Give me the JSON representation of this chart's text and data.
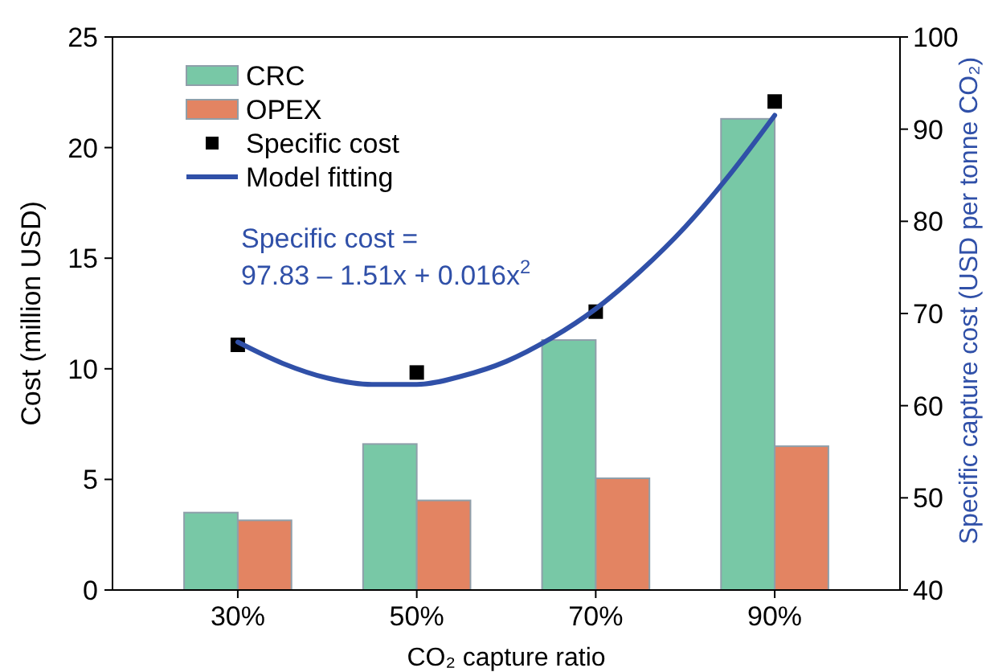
{
  "chart_data": {
    "type": "bar",
    "xlabel": "CO₂ capture ratio",
    "ylabel": "Cost (million USD)",
    "y2label": "Specific capture cost (USD per tonne CO₂)",
    "x": [
      30,
      50,
      70,
      90
    ],
    "xlim": [
      16,
      104
    ],
    "xticks": [
      {
        "value": 30,
        "label": "30%"
      },
      {
        "value": 50,
        "label": "50%"
      },
      {
        "value": 70,
        "label": "70%"
      },
      {
        "value": 90,
        "label": "90%"
      }
    ],
    "ylim": [
      0,
      25
    ],
    "yticks": [
      0,
      5,
      10,
      15,
      20,
      25
    ],
    "y2lim": [
      40,
      100
    ],
    "y2ticks": [
      40,
      50,
      60,
      70,
      80,
      90,
      100
    ],
    "series": [
      {
        "name": "CRC",
        "color": "#78c8a6",
        "values": [
          3.5,
          6.6,
          11.3,
          21.3
        ]
      },
      {
        "name": "OPEX",
        "color": "#e38462",
        "values": [
          3.15,
          4.05,
          5.05,
          6.5
        ]
      },
      {
        "name": "Specific cost",
        "type": "scatter",
        "axis": "y2",
        "marker": "square",
        "color": "#000000",
        "values": [
          66.6,
          63.6,
          70.2,
          93.0
        ]
      },
      {
        "name": "Model fitting",
        "type": "line",
        "axis": "y2",
        "line_style": "solid",
        "color": "#3050a8",
        "x": [
          30,
          35,
          40,
          45,
          50,
          55,
          60,
          65,
          70,
          75,
          80,
          85,
          90
        ],
        "values": [
          66.9,
          64.6,
          63.0,
          62.3,
          62.3,
          63.2,
          64.8,
          67.3,
          70.5,
          74.6,
          79.4,
          85.1,
          91.5
        ]
      }
    ],
    "annotations": [
      "Specific cost =\n97.83 – 1.51x + 0.016x$^{2}$"
    ],
    "legend": "top left",
    "grid": false
  }
}
